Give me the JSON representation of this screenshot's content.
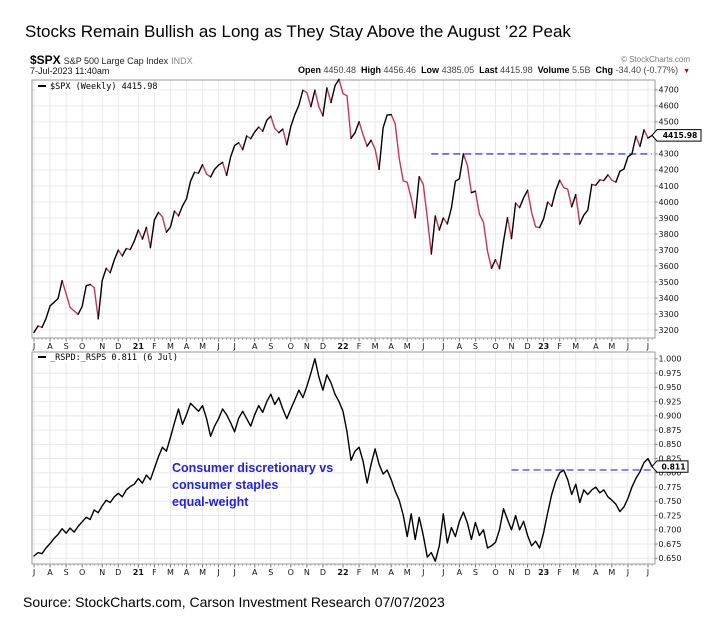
{
  "title": "Stocks Remain Bullish as Long as They Stay Above the August ’22 Peak",
  "source_line": "Source: StockCharts.com, Carson Investment Research 07/07/2023",
  "header": {
    "symbol": "$SPX",
    "name": "S&P 500 Large Cap Index",
    "exchange": "INDX",
    "datetime": "7-Jul-2023 11:40am",
    "copyright": "© StockCharts.com",
    "quote": [
      {
        "label": "Open",
        "value": "4450.48"
      },
      {
        "label": "High",
        "value": "4456.46"
      },
      {
        "label": "Low",
        "value": "4385.05"
      },
      {
        "label": "Last",
        "value": "4415.98"
      },
      {
        "label": "Volume",
        "value": "5.5B"
      },
      {
        "label": "Chg",
        "value": "-34.40 (-0.77%)"
      }
    ],
    "chg_marker": "▼",
    "chg_marker_color": "#cc0000"
  },
  "colors": {
    "grid": "#e8e8e8",
    "plot_border": "#9a9a9a",
    "tick": "#777777",
    "axis_text": "#111111",
    "dashed_blue": "#3d3df0",
    "annotation_blue": "#2222dd",
    "up_black": "#000000",
    "down_red": "#cc3352"
  },
  "chart_data": {
    "type": "line",
    "frequency": "weekly",
    "x_axis": {
      "tick_labels": [
        "J",
        "A",
        "S",
        "O",
        "N",
        "D",
        "21",
        "F",
        "M",
        "A",
        "M",
        "J",
        "J",
        "A",
        "S",
        "O",
        "N",
        "D",
        "22",
        "F",
        "M",
        "A",
        "M",
        "J",
        "J",
        "A",
        "S",
        "O",
        "N",
        "D",
        "23",
        "F",
        "M",
        "A",
        "M",
        "J",
        "J"
      ],
      "tick_weeks": [
        0,
        4,
        8,
        12,
        17,
        21,
        26,
        30,
        34,
        38,
        42,
        46,
        50,
        55,
        59,
        64,
        68,
        72,
        77,
        81,
        85,
        89,
        93,
        97,
        102,
        106,
        110,
        115,
        119,
        123,
        127,
        131,
        135,
        140,
        144,
        148,
        153
      ],
      "bold_labels": [
        "21",
        "22",
        "23"
      ]
    },
    "panels": [
      {
        "name": "$SPX S&P 500 weekly close",
        "legend": "$SPX (Weekly) 4415.98",
        "ylim": [
          3150,
          4762
        ],
        "yticks": [
          3200,
          3300,
          3400,
          3500,
          3600,
          3700,
          3800,
          3900,
          4000,
          4100,
          4200,
          4300,
          4400,
          4500,
          4600,
          4700
        ],
        "tick_decimals": 0,
        "up_color": "#000000",
        "down_color": "#cc3352",
        "color_rule": "segment red when weekly close declines",
        "last_value": 4415.98,
        "last_label": "4415.98",
        "dashed_line": {
          "level": 4300,
          "start_week": 99,
          "color": "#3d3df0"
        },
        "values": [
          3185,
          3225,
          3216,
          3271,
          3351,
          3373,
          3397,
          3508,
          3427,
          3341,
          3319,
          3298,
          3348,
          3477,
          3484,
          3465,
          3270,
          3509,
          3585,
          3558,
          3638,
          3699,
          3663,
          3709,
          3703,
          3756,
          3825,
          3768,
          3841,
          3714,
          3887,
          3935,
          3907,
          3811,
          3842,
          3943,
          3913,
          3975,
          4020,
          4129,
          4185,
          4180,
          4233,
          4174,
          4156,
          4204,
          4230,
          4247,
          4166,
          4281,
          4352,
          4370,
          4327,
          4412,
          4395,
          4437,
          4468,
          4442,
          4510,
          4535,
          4459,
          4433,
          4455,
          4357,
          4471,
          4545,
          4605,
          4698,
          4683,
          4595,
          4698,
          4594,
          4538,
          4712,
          4621,
          4726,
          4766,
          4677,
          4663,
          4398,
          4432,
          4501,
          4419,
          4349,
          4385,
          4329,
          4204,
          4463,
          4543,
          4546,
          4488,
          4272,
          4132,
          4123,
          4024,
          3901,
          4158,
          4109,
          3901,
          3675,
          3912,
          3825,
          3900,
          3863,
          3962,
          4130,
          4145,
          4300,
          4228,
          4058,
          4067,
          3924,
          3873,
          3693,
          3586,
          3640,
          3583,
          3753,
          3901,
          3771,
          3993,
          3965,
          4026,
          4072,
          3935,
          3845,
          3840,
          3895,
          3999,
          3973,
          4071,
          4136,
          4090,
          4079,
          3970,
          4046,
          3862,
          3917,
          3949,
          4109,
          4105,
          4138,
          4134,
          4169,
          4136,
          4124,
          4192,
          4205,
          4282,
          4299,
          4410,
          4348,
          4450,
          4399,
          4415.98
        ]
      },
      {
        "name": "_RSPD:_RSPS equal-weight discretionary vs staples ratio",
        "legend": "_RSPD:_RSPS 0.811 (6 Jul)",
        "ylim": [
          0.64,
          1.012
        ],
        "yticks": [
          0.65,
          0.675,
          0.7,
          0.725,
          0.75,
          0.775,
          0.8,
          0.825,
          0.85,
          0.875,
          0.9,
          0.925,
          0.95,
          0.975,
          1.0
        ],
        "tick_decimals": 3,
        "line_color": "#000000",
        "last_value": 0.811,
        "last_label": "0.811",
        "dashed_line": {
          "level": 0.805,
          "start_week": 119,
          "color": "#3d3df0"
        },
        "annotation": {
          "lines": [
            "Consumer discretionary vs",
            "consumer staples",
            "equal-weight"
          ],
          "color": "#2222dd"
        },
        "values": [
          0.654,
          0.66,
          0.658,
          0.668,
          0.676,
          0.685,
          0.692,
          0.702,
          0.694,
          0.703,
          0.696,
          0.706,
          0.714,
          0.722,
          0.718,
          0.735,
          0.73,
          0.742,
          0.752,
          0.748,
          0.758,
          0.764,
          0.758,
          0.77,
          0.776,
          0.78,
          0.79,
          0.782,
          0.796,
          0.788,
          0.808,
          0.828,
          0.845,
          0.838,
          0.862,
          0.888,
          0.912,
          0.885,
          0.902,
          0.922,
          0.915,
          0.908,
          0.918,
          0.895,
          0.864,
          0.882,
          0.895,
          0.912,
          0.902,
          0.888,
          0.872,
          0.896,
          0.908,
          0.895,
          0.882,
          0.902,
          0.918,
          0.906,
          0.925,
          0.938,
          0.92,
          0.932,
          0.912,
          0.895,
          0.912,
          0.928,
          0.945,
          0.932,
          0.952,
          0.975,
          1.0,
          0.968,
          0.945,
          0.972,
          0.958,
          0.938,
          0.925,
          0.908,
          0.872,
          0.822,
          0.838,
          0.845,
          0.82,
          0.782,
          0.815,
          0.842,
          0.815,
          0.798,
          0.805,
          0.788,
          0.768,
          0.752,
          0.726,
          0.688,
          0.728,
          0.683,
          0.722,
          0.69,
          0.652,
          0.66,
          0.645,
          0.672,
          0.728,
          0.677,
          0.704,
          0.688,
          0.715,
          0.731,
          0.712,
          0.683,
          0.713,
          0.69,
          0.7,
          0.668,
          0.672,
          0.678,
          0.7,
          0.737,
          0.718,
          0.7,
          0.725,
          0.7,
          0.715,
          0.69,
          0.672,
          0.68,
          0.668,
          0.695,
          0.73,
          0.762,
          0.785,
          0.8,
          0.805,
          0.788,
          0.762,
          0.78,
          0.748,
          0.77,
          0.762,
          0.77,
          0.775,
          0.765,
          0.77,
          0.758,
          0.752,
          0.745,
          0.732,
          0.74,
          0.755,
          0.775,
          0.79,
          0.802,
          0.818,
          0.825,
          0.811
        ]
      }
    ]
  }
}
